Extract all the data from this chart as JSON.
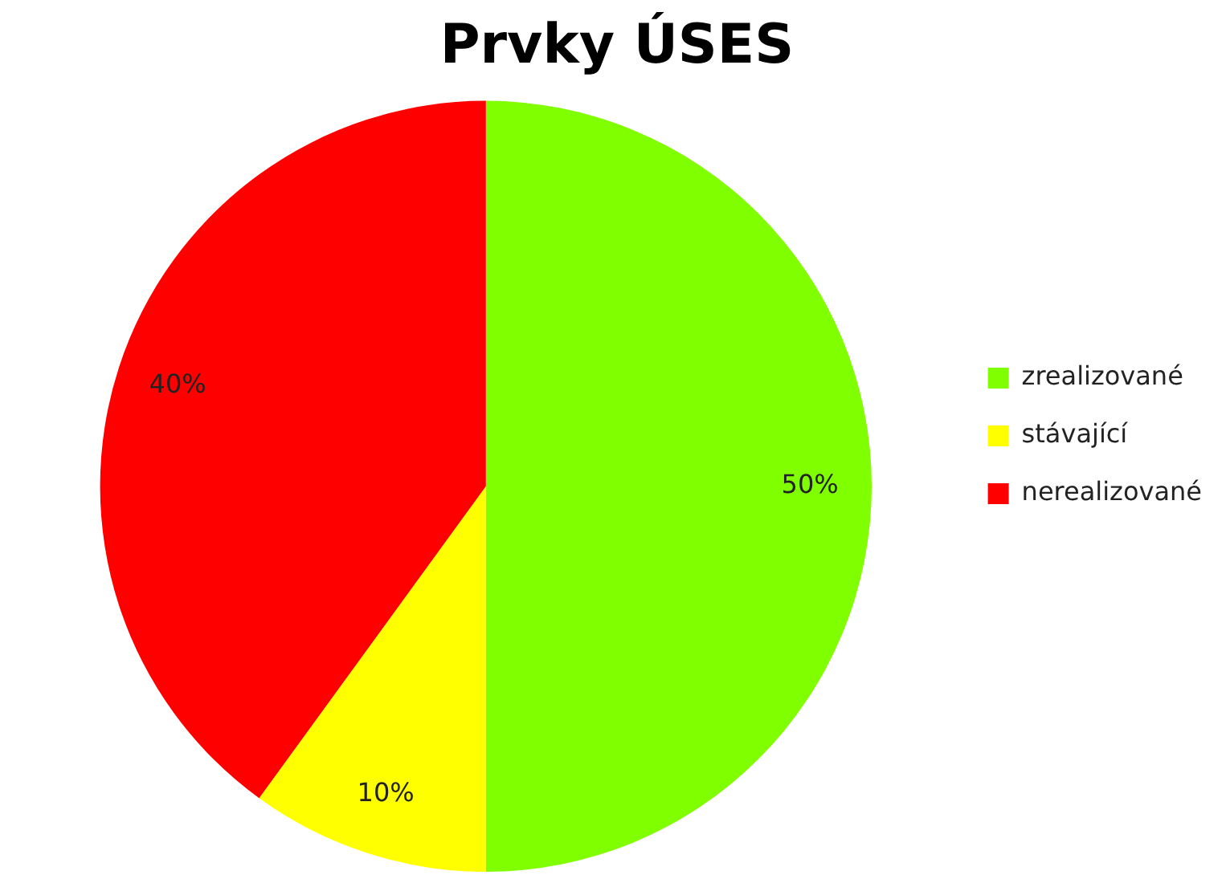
{
  "chart_data": {
    "type": "pie",
    "title": "Prvky ÚSES",
    "categories": [
      "zrealizované",
      "stávající",
      "nerealizované"
    ],
    "values": [
      50,
      10,
      40
    ],
    "colors": [
      "#80ff00",
      "#ffff00",
      "#ff0000"
    ],
    "value_labels": [
      "50%",
      "10%",
      "40%"
    ],
    "legend": "right"
  }
}
